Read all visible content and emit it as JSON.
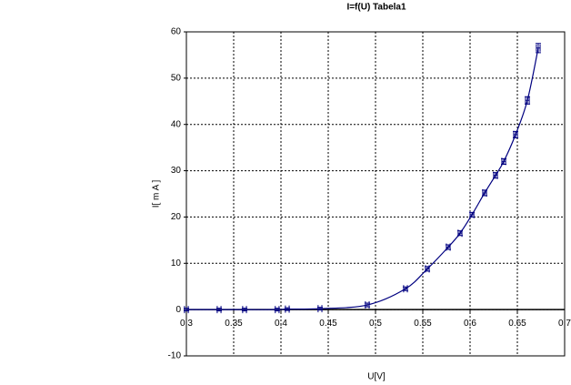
{
  "chart_data": {
    "type": "scatter",
    "title": "I=f(U)  Tabela1",
    "x_label": "U[V]",
    "y_label": "I[ m A ]",
    "x": [
      0.3,
      0.3346,
      0.3615,
      0.396,
      0.4067,
      0.4413,
      0.4913,
      0.5317,
      0.5548,
      0.5769,
      0.5894,
      0.602,
      0.6154,
      0.6269,
      0.6356,
      0.6481,
      0.6606,
      0.6721
    ],
    "xerr": [
      0.002,
      0.002,
      0.002,
      0.002,
      0.002,
      0.002,
      0.002,
      0.002,
      0.002,
      0.002,
      0.002,
      0.002,
      0.002,
      0.002,
      0.002,
      0.002,
      0.002,
      0.002
    ],
    "series": [
      {
        "color": "#000080",
        "values": [
          0,
          0,
          0,
          0,
          0.1,
          0.2,
          1,
          4.5,
          8.8,
          13.5,
          16.5,
          20.5,
          25.2,
          29,
          32,
          37.8,
          45.2,
          56.5
        ],
        "yerr": [
          0.3,
          0.3,
          0.3,
          0.3,
          0.3,
          0.3,
          0.4,
          0.4,
          0.5,
          0.5,
          0.5,
          0.5,
          0.6,
          0.6,
          0.6,
          0.7,
          0.8,
          1
        ]
      }
    ],
    "xlim": [
      0.3,
      0.7
    ],
    "xticks": [
      0.3,
      0.35,
      0.4,
      0.45,
      0.5,
      0.55,
      0.6,
      0.65,
      0.7
    ],
    "ylim": [
      -10,
      60
    ],
    "yticks": [
      -10,
      0,
      10,
      20,
      30,
      40,
      50,
      60
    ],
    "grid": true
  }
}
